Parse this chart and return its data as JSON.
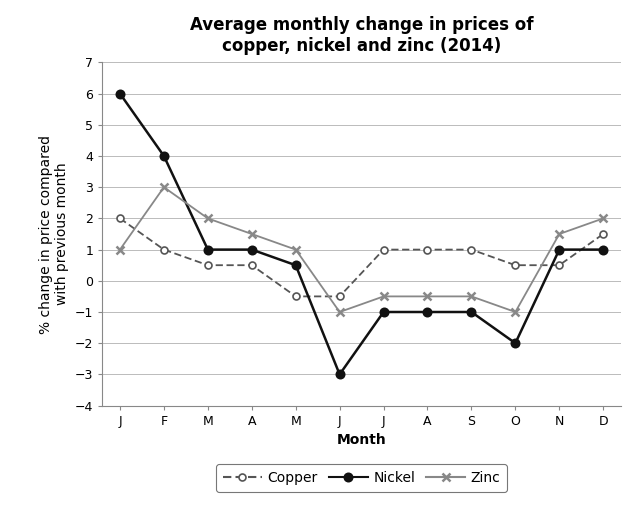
{
  "title": "Average monthly change in prices of\ncopper, nickel and zinc (2014)",
  "xlabel": "Month",
  "ylabel": "% change in price compared\nwith previous month",
  "months": [
    "J",
    "F",
    "M",
    "A",
    "M",
    "J",
    "J",
    "A",
    "S",
    "O",
    "N",
    "D"
  ],
  "copper": [
    2,
    1,
    0.5,
    0.5,
    -0.5,
    -0.5,
    1,
    1,
    1,
    0.5,
    0.5,
    1.5
  ],
  "nickel": [
    6,
    4,
    1,
    1,
    0.5,
    -3,
    -1,
    -1,
    -1,
    -2,
    1,
    1
  ],
  "zinc": [
    1,
    3,
    2,
    1.5,
    1,
    -1,
    -0.5,
    -0.5,
    -0.5,
    -1,
    1.5,
    2
  ],
  "ylim": [
    -4,
    7
  ],
  "yticks": [
    -4,
    -3,
    -2,
    -1,
    0,
    1,
    2,
    3,
    4,
    5,
    6,
    7
  ],
  "ytick_labels": [
    "-4",
    "-3",
    "-2",
    "-1",
    "0",
    "1",
    "2",
    "3",
    "4",
    "5",
    "6",
    "7"
  ],
  "background_color": "#ffffff",
  "copper_color": "#555555",
  "nickel_color": "#111111",
  "zinc_color": "#888888",
  "grid_color": "#bbbbbb",
  "title_fontsize": 12,
  "label_fontsize": 10,
  "tick_fontsize": 9,
  "legend_fontsize": 10
}
